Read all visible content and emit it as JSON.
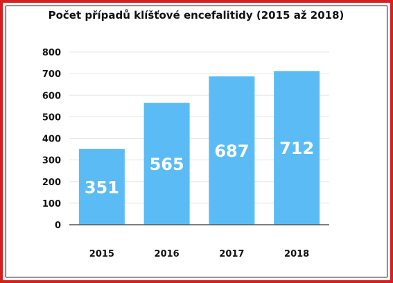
{
  "chart_data": {
    "type": "bar",
    "title": "Počet případů klíšťové encefalitidy (2015 až 2018)",
    "categories": [
      "2015",
      "2016",
      "2017",
      "2018"
    ],
    "values": [
      351,
      565,
      687,
      712
    ],
    "data_labels": [
      "351",
      "565",
      "687",
      "712"
    ],
    "ylim": [
      0,
      800
    ],
    "yticks": [
      0,
      100,
      200,
      300,
      400,
      500,
      600,
      700,
      800
    ],
    "xlabel": "",
    "ylabel": "",
    "grid": true,
    "legend": "none",
    "colors": {
      "bar": "#5bbcf5",
      "grid": "#e6e6e6",
      "axis": "#555555",
      "frame": "#d42020"
    }
  }
}
